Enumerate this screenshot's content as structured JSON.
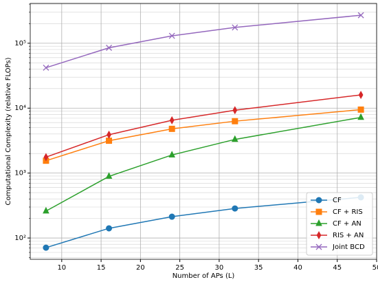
{
  "chart_data": {
    "type": "line",
    "x_label": "Number of APs (L)",
    "y_label": "Computational Complexity (relative FLOPs)",
    "x": [
      8,
      16,
      24,
      32,
      48
    ],
    "xlim": [
      6,
      50
    ],
    "xticks": [
      10,
      15,
      20,
      25,
      30,
      35,
      40,
      45,
      50
    ],
    "ylim": [
      47,
      410000
    ],
    "yscale": "log",
    "yticks": [
      {
        "value": 100,
        "label": "10²"
      },
      {
        "value": 1000,
        "label": "10³"
      },
      {
        "value": 10000,
        "label": "10⁴"
      },
      {
        "value": 100000,
        "label": "10⁵"
      }
    ],
    "grid": true,
    "minor_grid": true,
    "legend": "lower right",
    "series": [
      {
        "name": "CF",
        "color": "#1f77b4",
        "marker": "circle",
        "values": [
          71,
          141,
          213,
          285,
          423
        ]
      },
      {
        "name": "CF + RIS",
        "color": "#ff7f0e",
        "marker": "square",
        "values": [
          1550,
          3150,
          4800,
          6300,
          9500
        ]
      },
      {
        "name": "CF + AN",
        "color": "#2ca02c",
        "marker": "triangle",
        "values": [
          260,
          890,
          1900,
          3300,
          7200
        ]
      },
      {
        "name": "RIS + AN",
        "color": "#d62728",
        "marker": "diamond",
        "values": [
          1760,
          3900,
          6500,
          9300,
          16000
        ]
      },
      {
        "name": "Joint BCD",
        "color": "#9467bd",
        "marker": "x",
        "values": [
          42000,
          85000,
          130000,
          175000,
          270000
        ]
      }
    ]
  }
}
